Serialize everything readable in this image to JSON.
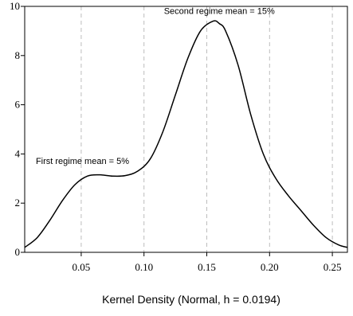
{
  "chart_data": {
    "type": "line",
    "title": "",
    "xlabel": "Kernel Density (Normal, h = 0.0194)",
    "ylabel": "",
    "xlim": [
      0.005,
      0.262
    ],
    "ylim": [
      0,
      10
    ],
    "x_ticks": [
      0.05,
      0.1,
      0.15,
      0.2,
      0.25
    ],
    "x_tick_labels": [
      "0.05",
      "0.10",
      "0.15",
      "0.20",
      "0.25"
    ],
    "y_ticks": [
      0,
      2,
      4,
      6,
      8,
      10
    ],
    "y_tick_labels": [
      "0",
      "2",
      "4",
      "6",
      "8",
      "10"
    ],
    "vertical_gridlines": true,
    "gridline_x": [
      0.05,
      0.1,
      0.15,
      0.2,
      0.25
    ],
    "series": [
      {
        "x": [
          0.005,
          0.015,
          0.025,
          0.035,
          0.045,
          0.055,
          0.065,
          0.075,
          0.085,
          0.095,
          0.105,
          0.115,
          0.125,
          0.135,
          0.145,
          0.155,
          0.16,
          0.165,
          0.175,
          0.185,
          0.195,
          0.205,
          0.215,
          0.225,
          0.235,
          0.245,
          0.255,
          0.262
        ],
        "y": [
          0.2,
          0.6,
          1.3,
          2.1,
          2.75,
          3.1,
          3.15,
          3.1,
          3.12,
          3.3,
          3.8,
          4.9,
          6.4,
          7.9,
          9.0,
          9.4,
          9.3,
          9.0,
          7.6,
          5.6,
          4.0,
          3.0,
          2.3,
          1.7,
          1.1,
          0.6,
          0.3,
          0.2
        ]
      }
    ],
    "annotations": [
      {
        "text": "First regime mean = 5%",
        "x": 0.051,
        "y": 3.6
      },
      {
        "text": "Second regime mean = 15%",
        "x": 0.16,
        "y": 9.7
      }
    ]
  }
}
